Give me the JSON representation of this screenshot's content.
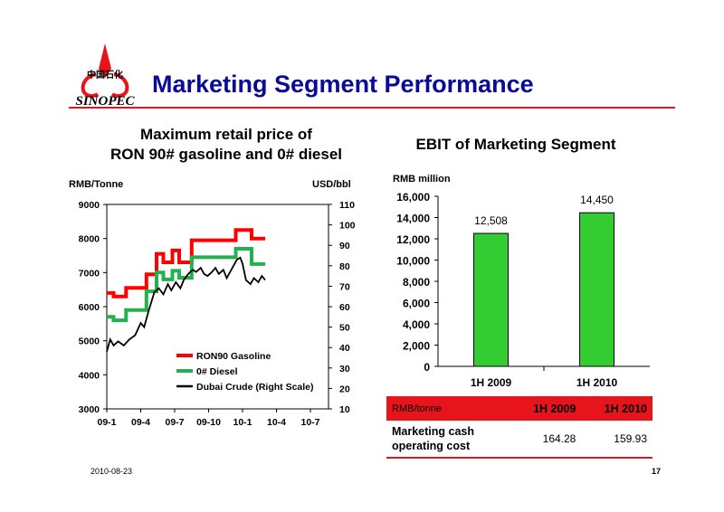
{
  "page": {
    "title": "Marketing Segment Performance",
    "date": "2010-08-23",
    "page_number": "17",
    "colors": {
      "title": "#0a0a96",
      "accent": "#e8141c",
      "gasoline": "#ff0000",
      "diesel": "#22b14c",
      "crude": "#000000",
      "bar": "#33cc33"
    }
  },
  "logo": {
    "brand": "SINOPEC",
    "chinese": "中国石化"
  },
  "chart_data": [
    {
      "type": "line",
      "title_line1": "Maximum retail price of",
      "title_line2": "RON 90# gasoline and 0# diesel",
      "ylabel_left": "RMB/Tonne",
      "ylabel_right": "USD/bbl",
      "ylim_left": [
        3000,
        9000
      ],
      "ylim_right": [
        10,
        110
      ],
      "yticks_left": [
        "9000",
        "8000",
        "7000",
        "6000",
        "5000",
        "4000",
        "3000"
      ],
      "yticks_right": [
        "110",
        "100",
        "90",
        "80",
        "70",
        "60",
        "50",
        "40",
        "30",
        "20",
        "10"
      ],
      "x_ticks": [
        "09-1",
        "09-4",
        "09-7",
        "09-10",
        "10-1",
        "10-4",
        "10-7"
      ],
      "x_range_months": [
        0,
        19.6
      ],
      "legend_placement": "bottom-center",
      "series": [
        {
          "name": "RON90 Gasoline",
          "axis": "left",
          "steps": [
            [
              0,
              6400
            ],
            [
              0.6,
              6300
            ],
            [
              1.7,
              6550
            ],
            [
              3.5,
              6950
            ],
            [
              4.4,
              7550
            ],
            [
              5.0,
              7300
            ],
            [
              5.8,
              7650
            ],
            [
              6.4,
              7300
            ],
            [
              7.5,
              7950
            ],
            [
              11.4,
              8250
            ],
            [
              12.8,
              8000
            ],
            [
              14.0,
              8000
            ]
          ]
        },
        {
          "name": "0# Diesel",
          "axis": "left",
          "steps": [
            [
              0,
              5700
            ],
            [
              0.6,
              5600
            ],
            [
              1.7,
              5900
            ],
            [
              3.5,
              6450
            ],
            [
              4.4,
              7000
            ],
            [
              5.0,
              6800
            ],
            [
              5.8,
              7050
            ],
            [
              6.4,
              6850
            ],
            [
              7.5,
              7450
            ],
            [
              11.4,
              7700
            ],
            [
              12.8,
              7250
            ],
            [
              14.0,
              7250
            ]
          ]
        },
        {
          "name": "Dubai Crude (Right Scale)",
          "axis": "right",
          "points": [
            [
              0,
              38
            ],
            [
              0.3,
              44
            ],
            [
              0.6,
              41
            ],
            [
              1.0,
              43
            ],
            [
              1.5,
              41
            ],
            [
              2.0,
              44
            ],
            [
              2.5,
              46
            ],
            [
              3.0,
              52
            ],
            [
              3.3,
              50
            ],
            [
              3.7,
              58
            ],
            [
              4.2,
              67
            ],
            [
              4.6,
              69
            ],
            [
              5.0,
              66
            ],
            [
              5.4,
              71
            ],
            [
              5.7,
              68
            ],
            [
              6.1,
              72
            ],
            [
              6.5,
              69
            ],
            [
              6.8,
              73
            ],
            [
              7.2,
              76
            ],
            [
              7.6,
              78
            ],
            [
              7.9,
              77
            ],
            [
              8.3,
              79
            ],
            [
              8.6,
              76
            ],
            [
              8.9,
              75
            ],
            [
              9.3,
              77
            ],
            [
              9.6,
              79
            ],
            [
              9.9,
              76
            ],
            [
              10.3,
              78
            ],
            [
              10.6,
              74
            ],
            [
              10.9,
              77
            ],
            [
              11.2,
              80
            ],
            [
              11.5,
              83
            ],
            [
              11.8,
              84
            ],
            [
              12.0,
              81
            ],
            [
              12.3,
              73
            ],
            [
              12.7,
              71
            ],
            [
              13.0,
              74
            ],
            [
              13.4,
              72
            ],
            [
              13.7,
              75
            ],
            [
              14.0,
              73
            ]
          ]
        }
      ]
    },
    {
      "type": "bar",
      "title": "EBIT of Marketing Segment",
      "ylabel": "RMB million",
      "categories": [
        "1H 2009",
        "1H 2010"
      ],
      "values": [
        12508,
        14450
      ],
      "value_labels": [
        "12,508",
        "14,450"
      ],
      "ylim": [
        0,
        16000
      ],
      "yticks": [
        "16,000",
        "14,000",
        "12,000",
        "10,000",
        "8,000",
        "6,000",
        "4,000",
        "2,000",
        "0"
      ]
    }
  ],
  "cost_table": {
    "header": [
      "RMB/tonne",
      "1H 2009",
      "1H 2010"
    ],
    "rows": [
      {
        "label_line1": "Marketing cash",
        "label_line2": "operating cost",
        "values": [
          "164.28",
          "159.93"
        ]
      }
    ]
  }
}
